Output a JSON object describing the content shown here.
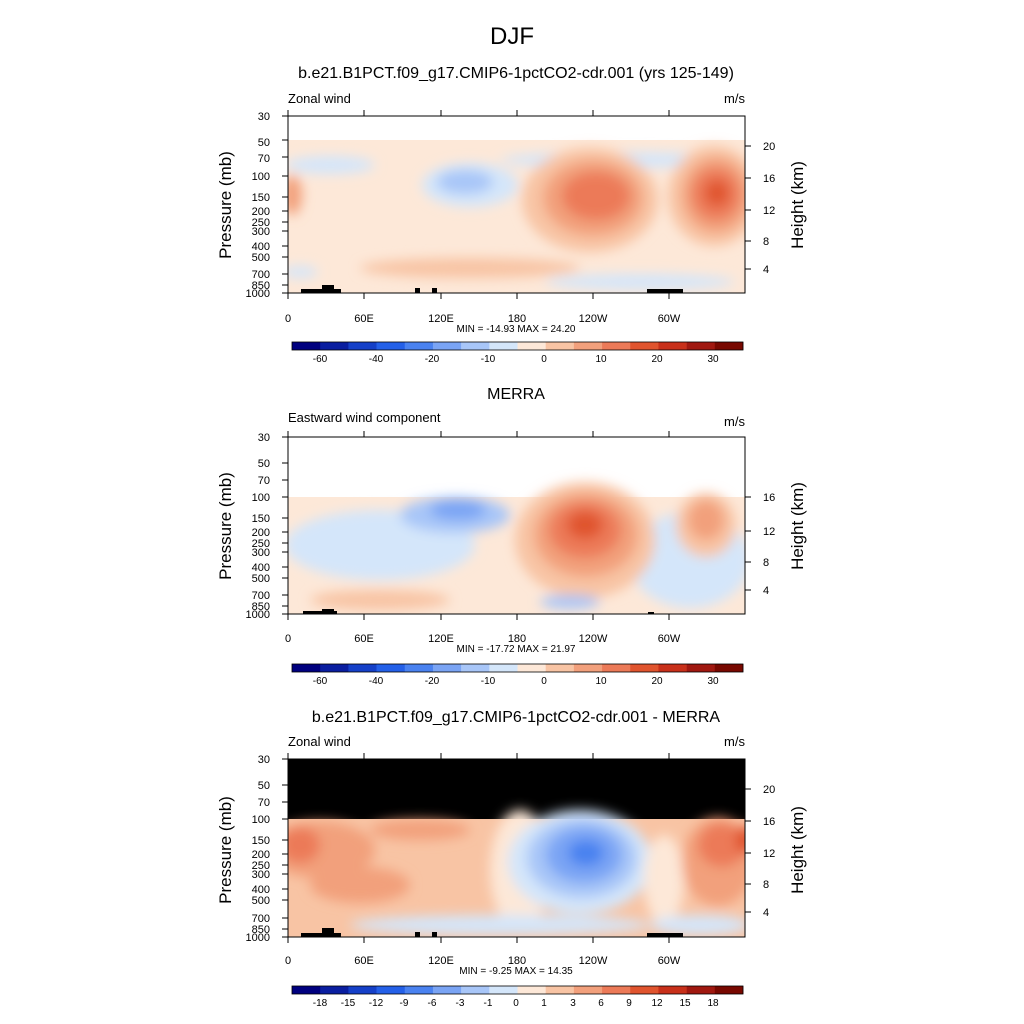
{
  "figure_title": "DJF",
  "chart_data": [
    {
      "type": "heatmap",
      "title": "b.e21.B1PCT.f09_g17.CMIP6-1pctCO2-cdr.001 (yrs 125-149)",
      "left_label": "Zonal wind",
      "right_label": "m/s",
      "ylabel": "Pressure (mb)",
      "ylabel_right": "Height (km)",
      "x_ticks": [
        "0",
        "60E",
        "120E",
        "180",
        "120W",
        "60W"
      ],
      "y_ticks": [
        "30",
        "50",
        "70",
        "100",
        "150",
        "200",
        "250",
        "300",
        "400",
        "500",
        "700",
        "850",
        "1000"
      ],
      "y_ticks_right": [
        "20",
        "16",
        "12",
        "8",
        "4"
      ],
      "stats": "MIN = -14.93  MAX =  24.20",
      "colorbar_labels": [
        "-60",
        "-40",
        "-20",
        "-10",
        "0",
        "10",
        "20",
        "30"
      ],
      "min": -14.93,
      "max": 24.2,
      "data_top_mb": 50
    },
    {
      "type": "heatmap",
      "title": "MERRA",
      "left_label": "Eastward wind component",
      "right_label": "m/s",
      "ylabel": "Pressure (mb)",
      "ylabel_right": "Height (km)",
      "x_ticks": [
        "0",
        "60E",
        "120E",
        "180",
        "120W",
        "60W"
      ],
      "y_ticks": [
        "30",
        "50",
        "70",
        "100",
        "150",
        "200",
        "250",
        "300",
        "400",
        "500",
        "700",
        "850",
        "1000"
      ],
      "y_ticks_right": [
        "16",
        "12",
        "8",
        "4"
      ],
      "stats": "MIN = -17.72  MAX =  21.97",
      "colorbar_labels": [
        "-60",
        "-40",
        "-20",
        "-10",
        "0",
        "10",
        "20",
        "30"
      ],
      "min": -17.72,
      "max": 21.97,
      "data_top_mb": 100
    },
    {
      "type": "heatmap",
      "title": "b.e21.B1PCT.f09_g17.CMIP6-1pctCO2-cdr.001 - MERRA",
      "left_label": "Zonal wind",
      "right_label": "m/s",
      "ylabel": "Pressure (mb)",
      "ylabel_right": "Height (km)",
      "x_ticks": [
        "0",
        "60E",
        "120E",
        "180",
        "120W",
        "60W"
      ],
      "y_ticks": [
        "30",
        "50",
        "70",
        "100",
        "150",
        "200",
        "250",
        "300",
        "400",
        "500",
        "700",
        "850",
        "1000"
      ],
      "y_ticks_right": [
        "20",
        "16",
        "12",
        "8",
        "4"
      ],
      "stats": "MIN = -9.25  MAX =  14.35",
      "colorbar_labels": [
        "-18",
        "-15",
        "-12",
        "-9",
        "-6",
        "-3",
        "-1",
        "0",
        "1",
        "3",
        "6",
        "9",
        "12",
        "15",
        "18"
      ],
      "min": -9.25,
      "max": 14.35,
      "data_top_mb": 100
    }
  ],
  "colors": {
    "colorbar": [
      "#00007f",
      "#0a1ea0",
      "#1540c8",
      "#2460e8",
      "#4a82f0",
      "#7aa4f4",
      "#a8c6f8",
      "#d4e6fa",
      "#fde8d8",
      "#f8c4a4",
      "#f2a07c",
      "#ec7a58",
      "#e0542e",
      "#c8301a",
      "#a01810",
      "#780800"
    ],
    "terrain": "#000000",
    "missing_black": "#000000"
  }
}
